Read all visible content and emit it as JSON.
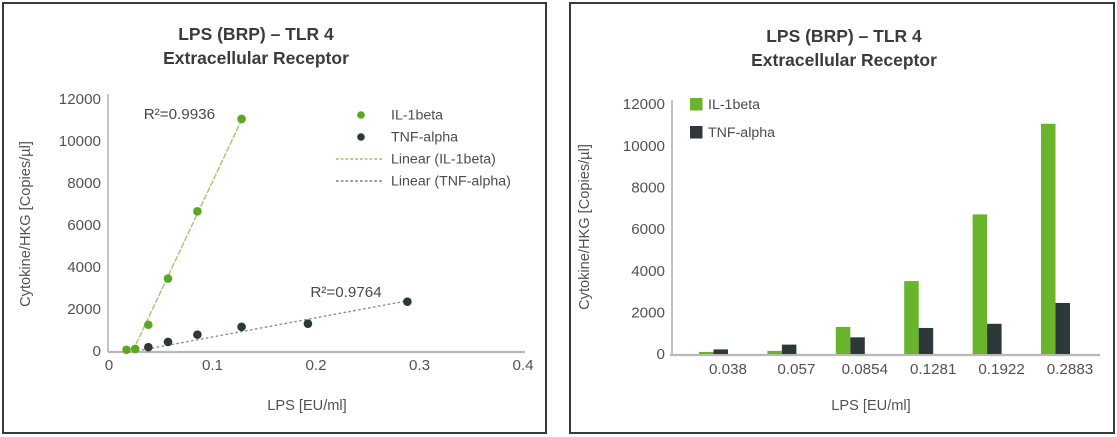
{
  "figure": {
    "title_line1": "LPS (BRP) – TLR 4",
    "title_line2": "Extracellular Receptor",
    "xlabel": "LPS [EU/ml]",
    "ylabel": "Cytokine/HKG [Copies/µl]"
  },
  "colors": {
    "green_bar": "#6ab42c",
    "green_dot": "#5aa81f",
    "green_trend": "#9ccb6e",
    "dark": "#2c383a",
    "gray_trend": "#8f8f8f",
    "axis": "#b8b8b8",
    "title_text": "#3b3b3b",
    "tick_text": "#525252",
    "panel_border": "#3a3a3a"
  },
  "chart_data": [
    {
      "type": "scatter",
      "title": "LPS (BRP) – TLR 4",
      "subtitle": "Extracellular Receptor",
      "xlabel": "LPS [EU/ml]",
      "ylabel": "Cytokine/HKG [Copies/µl]",
      "xlim": [
        0,
        0.4
      ],
      "ylim": [
        0,
        12000
      ],
      "xticks": [
        "0",
        "0.1",
        "0.2",
        "0.3",
        "0.4"
      ],
      "xtick_values": [
        0,
        0.1,
        0.2,
        0.3,
        0.4
      ],
      "yticks": [
        0,
        2000,
        4000,
        6000,
        8000,
        10000,
        12000
      ],
      "grid": false,
      "legend_position": "upper right",
      "series": [
        {
          "name": "IL-1beta",
          "color": "#5aa81f",
          "marker": "circle",
          "x": [
            0.0169,
            0.0253,
            0.038,
            0.057,
            0.0854,
            0.1281
          ],
          "y": [
            60,
            100,
            1250,
            3450,
            6650,
            11050
          ],
          "r_squared": "R²=0.9936",
          "trend": {
            "label": "Linear (IL-1beta)",
            "color": "#9ccb6e",
            "style": "solid-thin",
            "x": [
              0.023,
              0.1285
            ],
            "y": [
              0,
              11050
            ]
          }
        },
        {
          "name": "TNF-alpha",
          "color": "#2c383a",
          "marker": "circle",
          "x": [
            0.038,
            0.057,
            0.0854,
            0.1281,
            0.1922,
            0.2883
          ],
          "y": [
            180,
            430,
            780,
            1150,
            1300,
            2350
          ],
          "r_squared": "R²=0.9764",
          "trend": {
            "label": "Linear (TNF-alpha)",
            "color": "#8f8f8f",
            "style": "dotted",
            "x": [
              0.027,
              0.2928
            ],
            "y": [
              0,
              2430
            ]
          }
        }
      ],
      "annotations": [
        {
          "text": "R²=0.9936",
          "x": 0.068,
          "y": 11280
        },
        {
          "text": "R²=0.9764",
          "x": 0.229,
          "y": 2810
        }
      ],
      "legend": [
        {
          "label": "IL-1beta",
          "marker": "dot",
          "color": "#5aa81f"
        },
        {
          "label": "TNF-alpha",
          "marker": "dot",
          "color": "#2c383a"
        },
        {
          "label": "Linear (IL-1beta)",
          "marker": "dashed-line",
          "color": "#9ccb6e"
        },
        {
          "label": "Linear (TNF-alpha)",
          "marker": "dashed-line",
          "color": "#8f8f8f"
        }
      ]
    },
    {
      "type": "bar",
      "title": "LPS (BRP) – TLR 4",
      "subtitle": "Extracellular Receptor",
      "xlabel": "LPS [EU/ml]",
      "ylabel": "Cytokine/HKG [Copies/µl]",
      "categories": [
        "0.038",
        "0.057",
        "0.0854",
        "0.1281",
        "0.1922",
        "0.2883"
      ],
      "series": [
        {
          "name": "IL-1beta",
          "color": "#6ab42c",
          "values": [
            100,
            150,
            1300,
            3500,
            6700,
            11050
          ]
        },
        {
          "name": "TNF-alpha",
          "color": "#2c383a",
          "values": [
            220,
            450,
            800,
            1250,
            1450,
            2450
          ]
        }
      ],
      "ylim": [
        0,
        12000
      ],
      "yticks": [
        0,
        2000,
        4000,
        6000,
        8000,
        10000,
        12000
      ],
      "grid": false,
      "legend_position": "upper left",
      "legend": [
        {
          "label": "IL-1beta",
          "marker": "square",
          "color": "#6ab42c"
        },
        {
          "label": "TNF-alpha",
          "marker": "square",
          "color": "#2c383a"
        }
      ]
    }
  ]
}
